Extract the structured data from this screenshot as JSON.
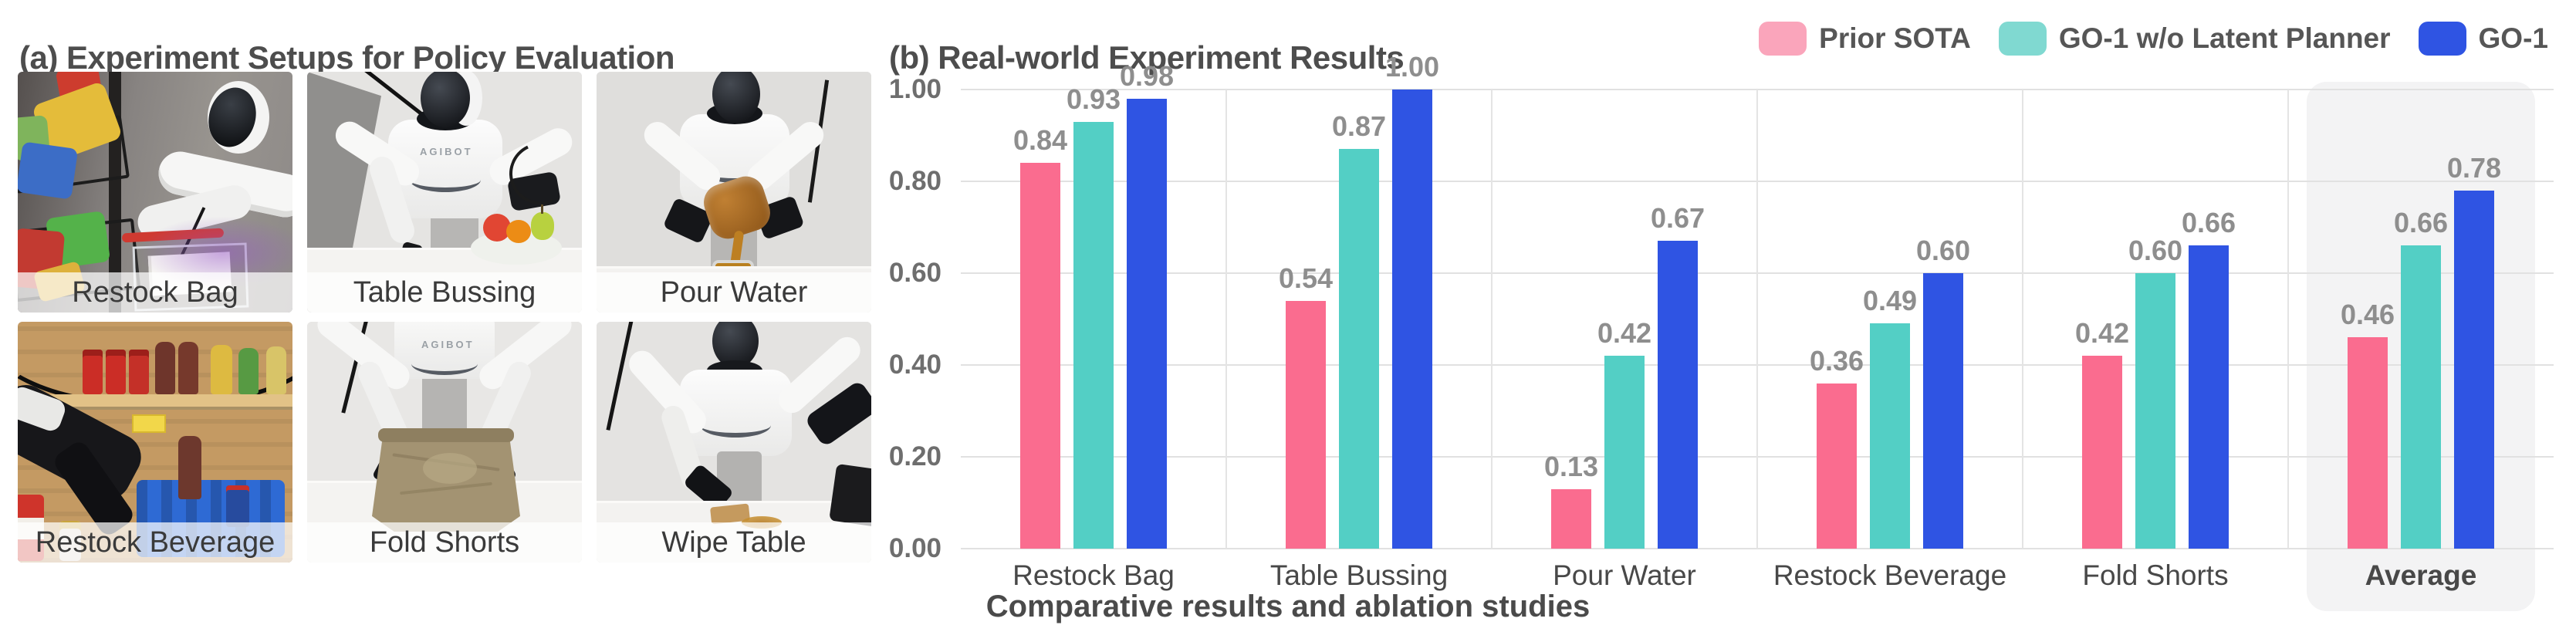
{
  "panel_a": {
    "title": "(a) Experiment Setups for Policy Evaluation",
    "robot_brand": "AGIBOT",
    "tiles": [
      {
        "label": "Restock Bag"
      },
      {
        "label": "Table Bussing"
      },
      {
        "label": "Pour Water"
      },
      {
        "label": "Restock Beverage"
      },
      {
        "label": "Fold Shorts"
      },
      {
        "label": "Wipe Table"
      }
    ]
  },
  "panel_b": {
    "title": "(b) Real-world Experiment Results",
    "caption": "Comparative results and ablation studies",
    "legend": [
      {
        "label": "Prior SOTA",
        "swatch_color": "#FAA5BB"
      },
      {
        "label": "GO-1 w/o Latent Planner",
        "swatch_color": "#80D9D1"
      },
      {
        "label": "GO-1",
        "swatch_color": "#2F54E3"
      }
    ]
  },
  "chart_data": {
    "type": "bar",
    "title": "(b) Real-world Experiment Results",
    "categories": [
      "Restock Bag",
      "Table Bussing",
      "Pour Water",
      "Restock Beverage",
      "Fold Shorts",
      "Average"
    ],
    "series": [
      {
        "name": "Prior SOTA",
        "color": "#FA6C8F",
        "values": [
          0.84,
          0.54,
          0.13,
          0.36,
          0.42,
          0.46
        ]
      },
      {
        "name": "GO-1 w/o Latent Planner",
        "color": "#53CFC5",
        "values": [
          0.93,
          0.87,
          0.42,
          0.49,
          0.6,
          0.66
        ]
      },
      {
        "name": "GO-1",
        "color": "#2F54E3",
        "values": [
          0.98,
          1.0,
          0.67,
          0.6,
          0.66,
          0.78
        ]
      }
    ],
    "xlabel": "",
    "ylabel": "",
    "ylim": [
      0,
      1.0
    ],
    "yticks": [
      "0.00",
      "0.20",
      "0.40",
      "0.60",
      "0.80",
      "1.00"
    ],
    "grid": true,
    "legend_position": "top-right",
    "highlight_category": "Average",
    "value_labels": true,
    "value_label_format": "2-decimals"
  }
}
